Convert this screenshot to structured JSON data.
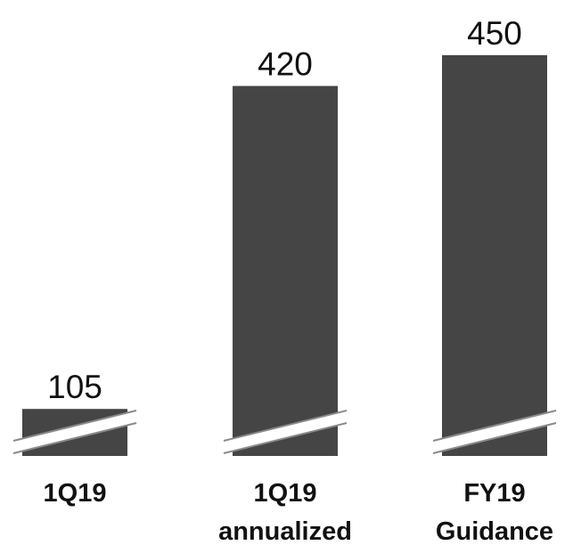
{
  "chart_data": {
    "type": "bar",
    "categories": [
      [
        "1Q19"
      ],
      [
        "1Q19",
        "annualized"
      ],
      [
        "FY19",
        "Guidance"
      ]
    ],
    "values": [
      105,
      420,
      450
    ],
    "data_labels": [
      "105",
      "420",
      "450"
    ],
    "axis_break": true,
    "ylim": [
      0,
      450
    ],
    "grid": false,
    "legend": "none",
    "bar_color": "#454545"
  }
}
